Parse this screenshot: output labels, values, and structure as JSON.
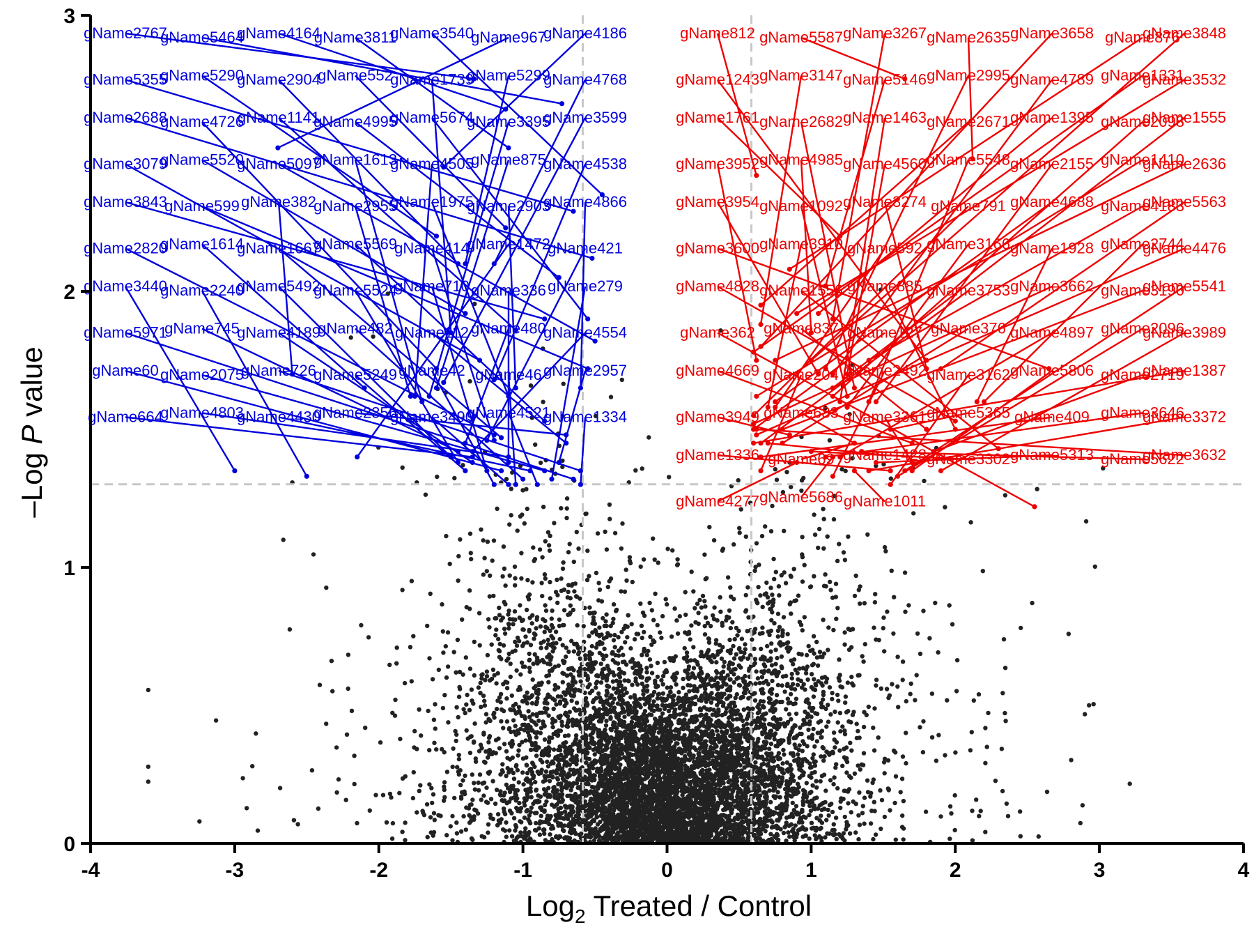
{
  "chart_data": {
    "type": "scatter",
    "title": "",
    "xlabel": {
      "prefix": "Log",
      "subscript": "2",
      "suffix": " Treated / Control"
    },
    "ylabel": {
      "prefix": "–Log ",
      "italic": "P",
      "suffix": " value"
    },
    "xlim": [
      -4,
      4
    ],
    "ylim": [
      0,
      3
    ],
    "xticks": [
      -4,
      -3,
      -2,
      -1,
      0,
      1,
      2,
      3,
      4
    ],
    "yticks": [
      0,
      1,
      2,
      3
    ],
    "xtick_labels": [
      "-4",
      "-3",
      "-2",
      "-1",
      "0",
      "1",
      "2",
      "3",
      "4"
    ],
    "ytick_labels": [
      "0",
      "1",
      "2",
      "3"
    ],
    "grid": false,
    "thresholds": {
      "fold_change_lines": [
        -0.585,
        0.585
      ],
      "p_value_line": 1.301
    },
    "colors": {
      "down": "#0000dd",
      "up": "#ee0000",
      "background_points": "#222222",
      "threshold": "#c8c8c8"
    },
    "background_points": {
      "count": 7000,
      "x_range": [
        -3.6,
        3.6
      ],
      "y_range": [
        0,
        2.9
      ],
      "note_density": "points dense near x=0, y<1"
    },
    "down_regulated": [
      {
        "name": "gName2767",
        "x": -1.34,
        "y": 2.77
      },
      {
        "name": "gName5464",
        "x": -0.73,
        "y": 2.68
      },
      {
        "name": "gName4164",
        "x": -1.12,
        "y": 2.66
      },
      {
        "name": "gName3811",
        "x": -1.1,
        "y": 2.52
      },
      {
        "name": "gName3540",
        "x": -0.45,
        "y": 2.35
      },
      {
        "name": "gName967",
        "x": -2.7,
        "y": 2.52
      },
      {
        "name": "gName4186",
        "x": -1.55,
        "y": 2.45
      },
      {
        "name": "gName5355",
        "x": -0.65,
        "y": 2.29
      },
      {
        "name": "gName5290",
        "x": -1.6,
        "y": 2.2
      },
      {
        "name": "gName2904",
        "x": -1.45,
        "y": 2.1
      },
      {
        "name": "gName552",
        "x": -1.12,
        "y": 2.23
      },
      {
        "name": "gName1739",
        "x": -1.5,
        "y": 1.85
      },
      {
        "name": "gName5299",
        "x": -1.4,
        "y": 2.1
      },
      {
        "name": "gName4768",
        "x": -1.2,
        "y": 2.1
      },
      {
        "name": "gName2688",
        "x": -0.52,
        "y": 2.12
      },
      {
        "name": "gName4726",
        "x": -1.6,
        "y": 1.72
      },
      {
        "name": "gName1141",
        "x": -1.05,
        "y": 1.86
      },
      {
        "name": "gName4995",
        "x": -0.75,
        "y": 2.05
      },
      {
        "name": "gName5674",
        "x": -0.55,
        "y": 1.9
      },
      {
        "name": "gName3395",
        "x": -1.65,
        "y": 1.62
      },
      {
        "name": "gName3599",
        "x": -1.55,
        "y": 1.67
      },
      {
        "name": "gName3079",
        "x": -1.3,
        "y": 1.75
      },
      {
        "name": "gName5520",
        "x": -1.4,
        "y": 1.92
      },
      {
        "name": "gName5097",
        "x": -0.5,
        "y": 1.82
      },
      {
        "name": "gName1613",
        "x": -1.7,
        "y": 1.6
      },
      {
        "name": "gName4505",
        "x": -1.75,
        "y": 1.62
      },
      {
        "name": "gName875",
        "x": -1.6,
        "y": 1.65
      },
      {
        "name": "gName4538",
        "x": -1.2,
        "y": 1.68
      },
      {
        "name": "gName3843",
        "x": -0.85,
        "y": 1.9
      },
      {
        "name": "gName599",
        "x": -0.55,
        "y": 1.72
      },
      {
        "name": "gName382",
        "x": -2.6,
        "y": 1.7
      },
      {
        "name": "gName2955",
        "x": -1.78,
        "y": 1.62
      },
      {
        "name": "gName1975",
        "x": -1.1,
        "y": 1.62
      },
      {
        "name": "gName2903",
        "x": -1.05,
        "y": 1.65
      },
      {
        "name": "gName4866",
        "x": -0.6,
        "y": 1.65
      },
      {
        "name": "gName2820",
        "x": -1.2,
        "y": 1.48
      },
      {
        "name": "gName1614",
        "x": -2.1,
        "y": 1.65
      },
      {
        "name": "gName1667",
        "x": -1.15,
        "y": 1.47
      },
      {
        "name": "gName5569",
        "x": -0.85,
        "y": 1.53
      },
      {
        "name": "gName414",
        "x": -1.2,
        "y": 1.46
      },
      {
        "name": "gName1472",
        "x": -2.15,
        "y": 1.4
      },
      {
        "name": "gName421",
        "x": -1.25,
        "y": 1.46
      },
      {
        "name": "gName3440",
        "x": -3.0,
        "y": 1.35
      },
      {
        "name": "gName2240",
        "x": -2.5,
        "y": 1.33
      },
      {
        "name": "gName5492",
        "x": -1.5,
        "y": 1.4
      },
      {
        "name": "gName5524",
        "x": -1.45,
        "y": 1.38
      },
      {
        "name": "gName710",
        "x": -1.25,
        "y": 1.35
      },
      {
        "name": "gName336",
        "x": -1.1,
        "y": 1.38
      },
      {
        "name": "gName279",
        "x": -0.8,
        "y": 1.32
      },
      {
        "name": "gName5971",
        "x": -0.65,
        "y": 1.32
      },
      {
        "name": "gName745",
        "x": -1.45,
        "y": 1.42
      },
      {
        "name": "gName4189",
        "x": -1.35,
        "y": 1.38
      },
      {
        "name": "gName482",
        "x": -1.0,
        "y": 1.32
      },
      {
        "name": "gName112",
        "x": -0.7,
        "y": 1.45
      },
      {
        "name": "gName480",
        "x": -1.4,
        "y": 1.45
      },
      {
        "name": "gName4554",
        "x": -1.35,
        "y": 1.42
      },
      {
        "name": "gName60",
        "x": -1.15,
        "y": 1.35
      },
      {
        "name": "gName2075",
        "x": -0.85,
        "y": 1.35
      },
      {
        "name": "gName726",
        "x": -0.6,
        "y": 1.35
      },
      {
        "name": "gName5249",
        "x": -1.4,
        "y": 1.35
      },
      {
        "name": "gName42",
        "x": -1.2,
        "y": 1.3
      },
      {
        "name": "gName46",
        "x": -1.05,
        "y": 1.3
      },
      {
        "name": "gName2957",
        "x": -0.75,
        "y": 1.38
      },
      {
        "name": "gName664",
        "x": -1.35,
        "y": 1.4
      },
      {
        "name": "gName4803",
        "x": -1.1,
        "y": 1.4
      },
      {
        "name": "gName4430",
        "x": -0.95,
        "y": 1.35
      },
      {
        "name": "gName2356",
        "x": -0.7,
        "y": 1.48
      },
      {
        "name": "gName3490",
        "x": -1.1,
        "y": 1.3
      },
      {
        "name": "gName4521",
        "x": -0.9,
        "y": 1.3
      },
      {
        "name": "gName1334",
        "x": -0.6,
        "y": 1.3
      }
    ],
    "up_regulated": [
      {
        "name": "gName812",
        "x": 0.62,
        "y": 2.42
      },
      {
        "name": "gName5587",
        "x": 1.65,
        "y": 2.77
      },
      {
        "name": "gName3267",
        "x": 1.15,
        "y": 1.9
      },
      {
        "name": "gName2635",
        "x": 2.12,
        "y": 2.48
      },
      {
        "name": "gName3658",
        "x": 0.65,
        "y": 1.8
      },
      {
        "name": "gName876",
        "x": 0.85,
        "y": 2.08
      },
      {
        "name": "gName3848",
        "x": 1.0,
        "y": 1.75
      },
      {
        "name": "gName1243",
        "x": 1.8,
        "y": 1.75
      },
      {
        "name": "gName3147",
        "x": 0.65,
        "y": 1.88
      },
      {
        "name": "gName5146",
        "x": 1.1,
        "y": 2.02
      },
      {
        "name": "gName2995",
        "x": 1.1,
        "y": 1.72
      },
      {
        "name": "gName4789",
        "x": 1.15,
        "y": 1.7
      },
      {
        "name": "gName1331",
        "x": 0.6,
        "y": 1.78
      },
      {
        "name": "gName3532",
        "x": 0.9,
        "y": 1.92
      },
      {
        "name": "gName1761",
        "x": 1.2,
        "y": 2.2
      },
      {
        "name": "gName2682",
        "x": 1.3,
        "y": 1.65
      },
      {
        "name": "gName1463",
        "x": 1.2,
        "y": 1.6
      },
      {
        "name": "gName2671",
        "x": 0.65,
        "y": 1.95
      },
      {
        "name": "gName1395",
        "x": 1.05,
        "y": 1.92
      },
      {
        "name": "gName2098",
        "x": 1.15,
        "y": 1.62
      },
      {
        "name": "gName1555",
        "x": 1.15,
        "y": 1.65
      },
      {
        "name": "gName3952",
        "x": 0.62,
        "y": 1.75
      },
      {
        "name": "gName4985",
        "x": 1.0,
        "y": 1.85
      },
      {
        "name": "gName4560",
        "x": 1.25,
        "y": 1.7
      },
      {
        "name": "gName5548",
        "x": 1.4,
        "y": 1.6
      },
      {
        "name": "gName2155",
        "x": 1.45,
        "y": 1.6
      },
      {
        "name": "gName1410",
        "x": 0.62,
        "y": 1.62
      },
      {
        "name": "gName2636",
        "x": 0.75,
        "y": 1.75
      },
      {
        "name": "gName3954",
        "x": 1.05,
        "y": 1.7
      },
      {
        "name": "gName1092",
        "x": 1.25,
        "y": 1.62
      },
      {
        "name": "gName3274",
        "x": 1.8,
        "y": 1.72
      },
      {
        "name": "gName791",
        "x": 0.6,
        "y": 1.55
      },
      {
        "name": "gName4688",
        "x": 0.75,
        "y": 1.6
      },
      {
        "name": "gName4183",
        "x": 1.4,
        "y": 1.75
      },
      {
        "name": "gName5563",
        "x": 1.9,
        "y": 1.72
      },
      {
        "name": "gName3600",
        "x": 2.65,
        "y": 1.72
      },
      {
        "name": "gName3910",
        "x": 0.7,
        "y": 1.58
      },
      {
        "name": "gName592",
        "x": 0.75,
        "y": 1.58
      },
      {
        "name": "gName3166",
        "x": 1.25,
        "y": 1.58
      },
      {
        "name": "gName1928",
        "x": 2.15,
        "y": 1.6
      },
      {
        "name": "gName2744",
        "x": 2.2,
        "y": 1.6
      },
      {
        "name": "gName4476",
        "x": 0.62,
        "y": 1.48
      },
      {
        "name": "gName4828",
        "x": 2.0,
        "y": 1.53
      },
      {
        "name": "gName1556",
        "x": 2.3,
        "y": 1.43
      },
      {
        "name": "gName885",
        "x": 2.0,
        "y": 1.5
      },
      {
        "name": "gName3753",
        "x": 0.65,
        "y": 1.45
      },
      {
        "name": "gName3662",
        "x": 0.6,
        "y": 1.52
      },
      {
        "name": "gName3190",
        "x": 0.8,
        "y": 1.5
      },
      {
        "name": "gName5541",
        "x": 1.65,
        "y": 1.35
      },
      {
        "name": "gName362",
        "x": 2.55,
        "y": 1.22
      },
      {
        "name": "gName837",
        "x": 1.8,
        "y": 1.5
      },
      {
        "name": "gName127",
        "x": 0.6,
        "y": 1.5
      },
      {
        "name": "gName376",
        "x": 0.8,
        "y": 1.45
      },
      {
        "name": "gName4897",
        "x": 1.2,
        "y": 1.4
      },
      {
        "name": "gName2096",
        "x": 1.6,
        "y": 1.33
      },
      {
        "name": "gName3989",
        "x": 1.9,
        "y": 1.35
      },
      {
        "name": "gName4669",
        "x": 1.7,
        "y": 1.45
      },
      {
        "name": "gName204",
        "x": 0.65,
        "y": 1.35
      },
      {
        "name": "gName2492",
        "x": 1.15,
        "y": 1.33
      },
      {
        "name": "gName3162",
        "x": 1.55,
        "y": 1.3
      },
      {
        "name": "gName5806",
        "x": 1.7,
        "y": 1.35
      },
      {
        "name": "gName2719",
        "x": 1.85,
        "y": 1.42
      },
      {
        "name": "gName1387",
        "x": 0.6,
        "y": 1.45
      },
      {
        "name": "gName3949",
        "x": 0.85,
        "y": 1.48
      },
      {
        "name": "gName683",
        "x": 1.3,
        "y": 1.45
      },
      {
        "name": "gName3361",
        "x": 1.7,
        "y": 1.38
      },
      {
        "name": "gName5365",
        "x": 1.55,
        "y": 1.5
      },
      {
        "name": "gName409",
        "x": 0.65,
        "y": 1.4
      },
      {
        "name": "gName3646",
        "x": 1.1,
        "y": 1.4
      },
      {
        "name": "gName3372",
        "x": 1.4,
        "y": 1.35
      },
      {
        "name": "gName1336",
        "x": 1.55,
        "y": 1.35
      },
      {
        "name": "gName69",
        "x": 1.3,
        "y": 1.45
      },
      {
        "name": "gName1428",
        "x": 0.7,
        "y": 1.45
      },
      {
        "name": "gName3302",
        "x": 1.0,
        "y": 1.42
      },
      {
        "name": "gName5313",
        "x": 1.45,
        "y": 1.38
      },
      {
        "name": "gName5622",
        "x": 1.35,
        "y": 1.42
      },
      {
        "name": "gName3632",
        "x": 0.62,
        "y": 1.5
      },
      {
        "name": "gName4277",
        "x": 0.9,
        "y": 1.38
      },
      {
        "name": "gName5686",
        "x": 1.15,
        "y": 1.4
      },
      {
        "name": "gName1011",
        "x": 1.3,
        "y": 1.35
      }
    ]
  }
}
